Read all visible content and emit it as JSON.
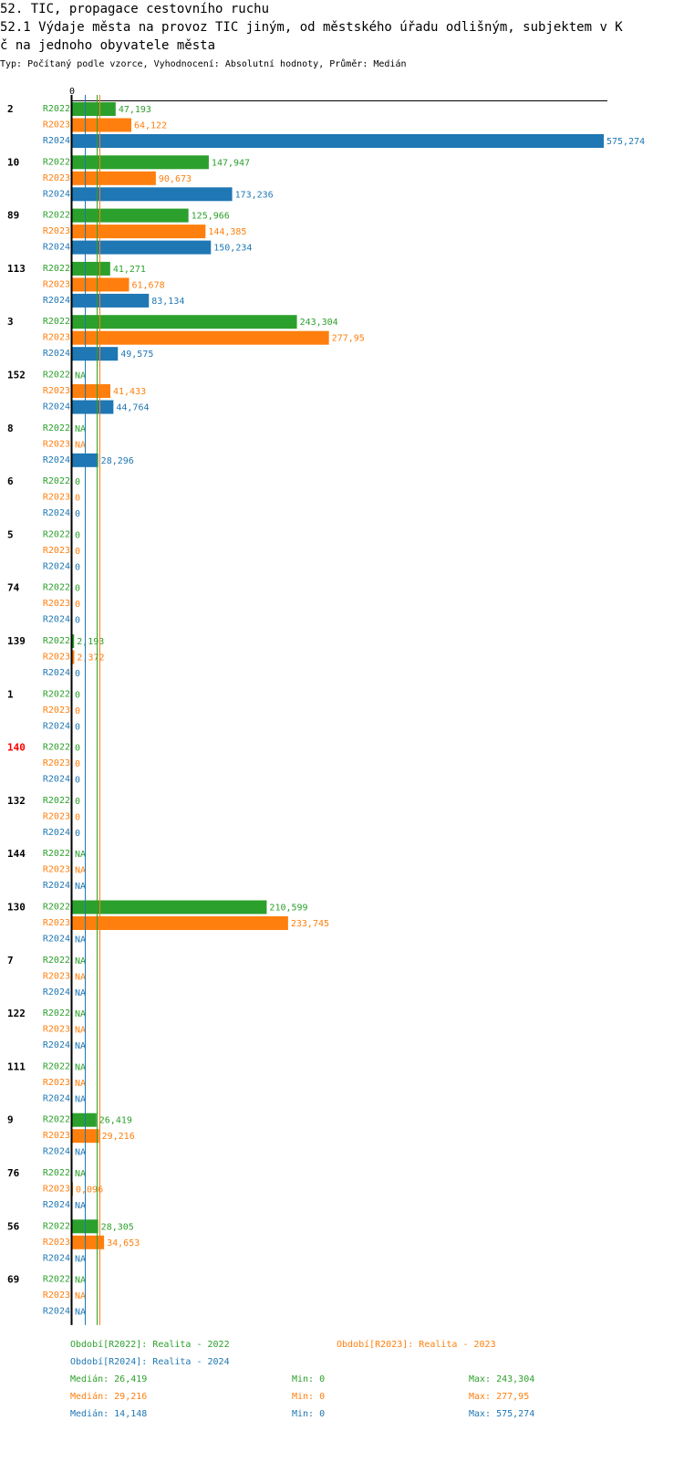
{
  "title_line1": "52. TIC, propagace cestovního ruchu",
  "title_line2": "52.1 Výdaje města na provoz TIC jiným, od městského úřadu odlišným, subjektem v K",
  "title_line3": "č na jednoho obyvatele města",
  "subtitle": "Typ: Počítaný podle vzorce, Vyhodnocení: Absolutní hodnoty, Průměr: Medián",
  "colors": {
    "R2022": "#2ca02c",
    "R2023": "#ff7f0e",
    "R2024": "#1f77b4",
    "highlight": "#ff0000"
  },
  "chart_data": {
    "type": "bar",
    "orientation": "horizontal",
    "x_tick_labels": [
      "0"
    ],
    "xlim": [
      0,
      575.274
    ],
    "series_names": [
      "R2022",
      "R2023",
      "R2024"
    ],
    "categories": [
      "2",
      "10",
      "89",
      "113",
      "3",
      "152",
      "8",
      "6",
      "5",
      "74",
      "139",
      "1",
      "140",
      "132",
      "144",
      "130",
      "7",
      "122",
      "111",
      "9",
      "76",
      "56",
      "69"
    ],
    "highlight_category": "140",
    "values": {
      "R2022": [
        47.193,
        147.947,
        125.966,
        41.271,
        243.304,
        null,
        null,
        0,
        0,
        0,
        2.193,
        0,
        0,
        0,
        null,
        210.599,
        null,
        null,
        null,
        26.419,
        null,
        28.305,
        null
      ],
      "R2023": [
        64.122,
        90.673,
        144.385,
        61.678,
        277.95,
        41.433,
        null,
        0,
        0,
        0,
        2.372,
        0,
        0,
        0,
        null,
        233.745,
        null,
        null,
        null,
        29.216,
        0.096,
        34.653,
        null
      ],
      "R2024": [
        575.274,
        173.236,
        150.234,
        83.134,
        49.575,
        44.764,
        28.296,
        0,
        0,
        0,
        0,
        0,
        0,
        0,
        null,
        null,
        null,
        null,
        null,
        null,
        null,
        null,
        null
      ]
    },
    "labels": {
      "R2022": [
        "47,193",
        "147,947",
        "125,966",
        "41,271",
        "243,304",
        "NA",
        "NA",
        "0",
        "0",
        "0",
        "2,193",
        "0",
        "0",
        "0",
        "NA",
        "210,599",
        "NA",
        "NA",
        "NA",
        "26,419",
        "NA",
        "28,305",
        "NA"
      ],
      "R2023": [
        "64,122",
        "90,673",
        "144,385",
        "61,678",
        "277,95",
        "41,433",
        "NA",
        "0",
        "0",
        "0",
        "2,372",
        "0",
        "0",
        "0",
        "NA",
        "233,745",
        "NA",
        "NA",
        "NA",
        "29,216",
        "0,096",
        "34,653",
        "NA"
      ],
      "R2024": [
        "575,274",
        "173,236",
        "150,234",
        "83,134",
        "49,575",
        "44,764",
        "28,296",
        "0",
        "0",
        "0",
        "0",
        "0",
        "0",
        "0",
        "NA",
        "NA",
        "NA",
        "NA",
        "NA",
        "NA",
        "NA",
        "NA",
        "NA"
      ]
    },
    "median_lines": {
      "R2022": 26.419,
      "R2023": 29.216,
      "R2024": 14.148
    }
  },
  "legend": {
    "period_r2022": "Období[R2022]: Realita - 2022",
    "period_r2023": "Období[R2023]: Realita - 2023",
    "period_r2024": "Období[R2024]: Realita - 2024",
    "stats": [
      {
        "median": "Medián: 26,419",
        "min": "Min: 0",
        "max": "Max: 243,304"
      },
      {
        "median": "Medián: 29,216",
        "min": "Min: 0",
        "max": "Max: 277,95"
      },
      {
        "median": "Medián: 14,148",
        "min": "Min: 0",
        "max": "Max: 575,274"
      }
    ]
  }
}
